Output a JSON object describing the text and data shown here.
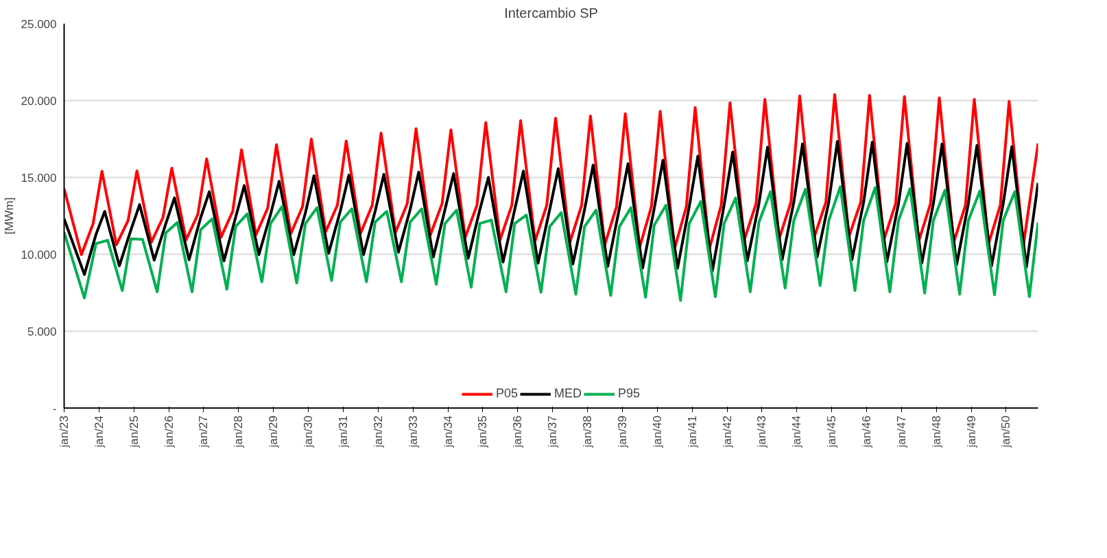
{
  "chart_data": {
    "type": "line",
    "title": "Intercambio SP",
    "ylabel": "[MWm]",
    "ylim": [
      0,
      25000
    ],
    "yticks": [
      {
        "value": 0,
        "label": "-"
      },
      {
        "value": 5000,
        "label": "5.000"
      },
      {
        "value": 10000,
        "label": "10.000"
      },
      {
        "value": 15000,
        "label": "15.000"
      },
      {
        "value": 20000,
        "label": "20.000"
      },
      {
        "value": 25000,
        "label": "25.000"
      }
    ],
    "xlim": [
      "2023-01",
      "2050-12"
    ],
    "xticks": [
      {
        "value": "2023-01",
        "label": "jan/23"
      },
      {
        "value": "2024-01",
        "label": "jan/24"
      },
      {
        "value": "2025-01",
        "label": "jan/25"
      },
      {
        "value": "2026-01",
        "label": "jan/26"
      },
      {
        "value": "2027-01",
        "label": "jan/27"
      },
      {
        "value": "2028-01",
        "label": "jan/28"
      },
      {
        "value": "2029-01",
        "label": "jan/29"
      },
      {
        "value": "2030-01",
        "label": "jan/30"
      },
      {
        "value": "2031-01",
        "label": "jan/31"
      },
      {
        "value": "2032-01",
        "label": "jan/32"
      },
      {
        "value": "2033-01",
        "label": "jan/33"
      },
      {
        "value": "2034-01",
        "label": "jan/34"
      },
      {
        "value": "2035-01",
        "label": "jan/35"
      },
      {
        "value": "2036-01",
        "label": "jan/36"
      },
      {
        "value": "2037-01",
        "label": "jan/37"
      },
      {
        "value": "2038-01",
        "label": "jan/38"
      },
      {
        "value": "2039-01",
        "label": "jan/39"
      },
      {
        "value": "2040-01",
        "label": "jan/40"
      },
      {
        "value": "2041-01",
        "label": "jan/41"
      },
      {
        "value": "2042-01",
        "label": "jan/42"
      },
      {
        "value": "2043-01",
        "label": "jan/43"
      },
      {
        "value": "2044-01",
        "label": "jan/44"
      },
      {
        "value": "2045-01",
        "label": "jan/45"
      },
      {
        "value": "2046-01",
        "label": "jan/46"
      },
      {
        "value": "2047-01",
        "label": "jan/47"
      },
      {
        "value": "2048-01",
        "label": "jan/48"
      },
      {
        "value": "2049-01",
        "label": "jan/49"
      },
      {
        "value": "2050-01",
        "label": "jan/50"
      }
    ],
    "grid": "y",
    "legend": "bottom",
    "marker": "none",
    "line_style": "solid",
    "series": [
      {
        "name": "P05",
        "color": "#ff0000",
        "x": [
          "2023-01",
          "2023-07",
          "2023-11",
          "2024-02",
          "2024-07",
          "2024-11",
          "2025-02",
          "2025-07",
          "2025-11",
          "2026-02",
          "2026-07",
          "2026-11",
          "2027-02",
          "2027-07",
          "2027-11",
          "2028-02",
          "2028-07",
          "2028-11",
          "2029-02",
          "2029-07",
          "2029-11",
          "2030-02",
          "2030-07",
          "2030-11",
          "2031-02",
          "2031-07",
          "2031-11",
          "2032-02",
          "2032-07",
          "2032-11",
          "2033-02",
          "2033-07",
          "2033-11",
          "2034-02",
          "2034-07",
          "2034-11",
          "2035-02",
          "2035-07",
          "2035-11",
          "2036-02",
          "2036-07",
          "2036-11",
          "2037-02",
          "2037-07",
          "2037-11",
          "2038-02",
          "2038-07",
          "2038-11",
          "2039-02",
          "2039-07",
          "2039-11",
          "2040-02",
          "2040-07",
          "2040-11",
          "2041-02",
          "2041-07",
          "2041-11",
          "2042-02",
          "2042-07",
          "2042-11",
          "2043-02",
          "2043-07",
          "2043-11",
          "2044-02",
          "2044-07",
          "2044-11",
          "2045-02",
          "2045-07",
          "2045-11",
          "2046-02",
          "2046-07",
          "2046-11",
          "2047-02",
          "2047-07",
          "2047-11",
          "2048-02",
          "2048-07",
          "2048-11",
          "2049-02",
          "2049-07",
          "2049-11",
          "2050-02",
          "2050-07",
          "2050-12"
        ],
        "values": [
          14260,
          9980,
          12000,
          15400,
          10620,
          12200,
          15420,
          10780,
          12400,
          15600,
          10940,
          12600,
          16210,
          11100,
          12800,
          16800,
          11260,
          13000,
          17130,
          11340,
          13100,
          17500,
          11460,
          13200,
          17370,
          11360,
          13200,
          17880,
          11420,
          13300,
          18170,
          11260,
          13300,
          18090,
          11100,
          13200,
          18570,
          10940,
          13200,
          18690,
          10860,
          13200,
          18850,
          10780,
          13200,
          19000,
          10620,
          13100,
          19140,
          10460,
          13100,
          19300,
          10380,
          13100,
          19540,
          10380,
          13200,
          19860,
          10940,
          13300,
          20080,
          11020,
          13400,
          20300,
          11100,
          13400,
          20390,
          11180,
          13400,
          20340,
          10940,
          13300,
          20260,
          10860,
          13300,
          20180,
          10780,
          13200,
          20080,
          10700,
          13200,
          19950,
          10620,
          17210
        ]
      },
      {
        "name": "MED",
        "color": "#000000",
        "x": [
          "2023-01",
          "2023-08",
          "2023-12",
          "2024-03",
          "2024-08",
          "2024-12",
          "2025-03",
          "2025-08",
          "2025-12",
          "2026-03",
          "2026-08",
          "2026-12",
          "2027-03",
          "2027-08",
          "2027-12",
          "2028-03",
          "2028-08",
          "2028-12",
          "2029-03",
          "2029-08",
          "2029-12",
          "2030-03",
          "2030-08",
          "2030-12",
          "2031-03",
          "2031-08",
          "2031-12",
          "2032-03",
          "2032-08",
          "2032-12",
          "2033-03",
          "2033-08",
          "2033-12",
          "2034-03",
          "2034-08",
          "2034-12",
          "2035-03",
          "2035-08",
          "2035-12",
          "2036-03",
          "2036-08",
          "2036-12",
          "2037-03",
          "2037-08",
          "2037-12",
          "2038-03",
          "2038-08",
          "2038-12",
          "2039-03",
          "2039-08",
          "2039-12",
          "2040-03",
          "2040-08",
          "2040-12",
          "2041-03",
          "2041-08",
          "2041-12",
          "2042-03",
          "2042-08",
          "2042-12",
          "2043-03",
          "2043-08",
          "2043-12",
          "2044-03",
          "2044-08",
          "2044-12",
          "2045-03",
          "2045-08",
          "2045-12",
          "2046-03",
          "2046-08",
          "2046-12",
          "2047-03",
          "2047-08",
          "2047-12",
          "2048-03",
          "2048-08",
          "2048-12",
          "2049-03",
          "2049-08",
          "2049-12",
          "2050-03",
          "2050-08",
          "2050-12"
        ],
        "values": [
          12300,
          8690,
          11300,
          12790,
          9250,
          11600,
          13230,
          9620,
          12000,
          13670,
          9640,
          12400,
          14070,
          9570,
          12400,
          14470,
          9980,
          12600,
          14750,
          9980,
          12700,
          15110,
          10060,
          12800,
          15150,
          9980,
          12800,
          15200,
          10140,
          12900,
          15350,
          9820,
          12900,
          15250,
          9740,
          12900,
          15000,
          9500,
          12900,
          15410,
          9420,
          12900,
          15570,
          9370,
          12900,
          15800,
          9210,
          13000,
          15890,
          9100,
          13000,
          16120,
          9100,
          13100,
          16380,
          8930,
          13200,
          16650,
          9570,
          13300,
          16970,
          9650,
          13400,
          17180,
          9820,
          13400,
          17340,
          9650,
          13400,
          17290,
          9500,
          13300,
          17210,
          9420,
          13300,
          17180,
          9340,
          13300,
          17080,
          9250,
          13300,
          17000,
          9170,
          14640
        ]
      },
      {
        "name": "P95",
        "color": "#00b050",
        "x": [
          "2023-01",
          "2023-08",
          "2023-12",
          "2024-04",
          "2024-09",
          "2024-12",
          "2025-04",
          "2025-09",
          "2025-12",
          "2026-04",
          "2026-09",
          "2026-12",
          "2027-04",
          "2027-09",
          "2027-12",
          "2028-04",
          "2028-09",
          "2028-12",
          "2029-04",
          "2029-09",
          "2029-12",
          "2030-04",
          "2030-09",
          "2030-12",
          "2031-04",
          "2031-09",
          "2031-12",
          "2032-04",
          "2032-09",
          "2032-12",
          "2033-04",
          "2033-09",
          "2033-12",
          "2034-04",
          "2034-09",
          "2034-12",
          "2035-04",
          "2035-09",
          "2035-12",
          "2036-04",
          "2036-09",
          "2036-12",
          "2037-04",
          "2037-09",
          "2037-12",
          "2038-04",
          "2038-09",
          "2038-12",
          "2039-04",
          "2039-09",
          "2039-12",
          "2040-04",
          "2040-09",
          "2040-12",
          "2041-04",
          "2041-09",
          "2041-12",
          "2042-04",
          "2042-09",
          "2042-12",
          "2043-04",
          "2043-09",
          "2043-12",
          "2044-04",
          "2044-09",
          "2044-12",
          "2045-04",
          "2045-09",
          "2045-12",
          "2046-04",
          "2046-09",
          "2046-12",
          "2047-04",
          "2047-09",
          "2047-12",
          "2048-04",
          "2048-09",
          "2048-12",
          "2049-04",
          "2049-09",
          "2049-12",
          "2050-04",
          "2050-09",
          "2050-12"
        ],
        "values": [
          11420,
          7160,
          10700,
          10910,
          7640,
          11000,
          10970,
          7560,
          11400,
          12070,
          7560,
          11600,
          12310,
          7720,
          11800,
          12630,
          8210,
          12000,
          13110,
          8130,
          12000,
          13030,
          8290,
          12100,
          12950,
          8210,
          12100,
          12790,
          8210,
          12100,
          12950,
          8050,
          12000,
          12870,
          7860,
          12000,
          12230,
          7560,
          12000,
          12550,
          7530,
          11800,
          12710,
          7400,
          11800,
          12870,
          7320,
          11800,
          13030,
          7210,
          11900,
          13190,
          7000,
          12000,
          13430,
          7240,
          12000,
          13670,
          7560,
          12100,
          14070,
          7800,
          12200,
          14230,
          7970,
          12200,
          14390,
          7640,
          12200,
          14340,
          7560,
          12200,
          14270,
          7480,
          12200,
          14170,
          7400,
          12200,
          14120,
          7370,
          12200,
          14070,
          7240,
          12070
        ]
      }
    ]
  }
}
